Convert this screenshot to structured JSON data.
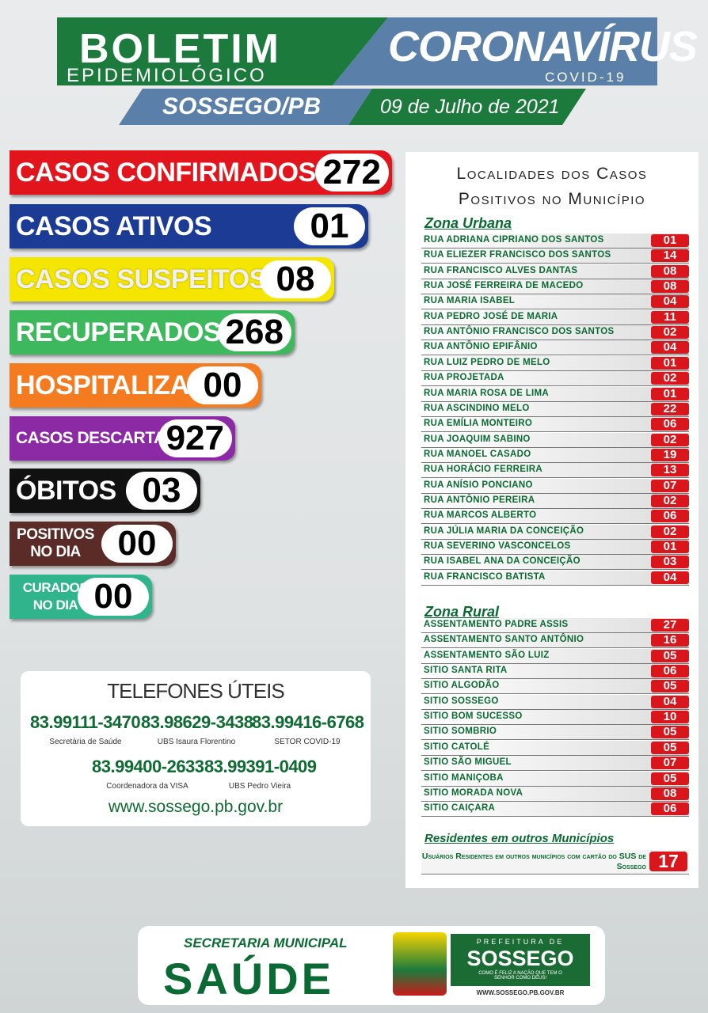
{
  "header": {
    "title": "BOLETIM",
    "subtitle": "EPIDEMIOLÓGICO",
    "virus": "CORONAVÍRUS",
    "covid": "COVID-19",
    "location": "SOSSEGO/PB",
    "date": "09 de Julho de 2021"
  },
  "stats": [
    {
      "label": "CASOS CONFIRMADOS",
      "value": "272",
      "color": "#e2151d"
    },
    {
      "label": "CASOS ATIVOS",
      "value": "01",
      "color": "#1c3b94"
    },
    {
      "label": "CASOS SUSPEITOS",
      "value": "08",
      "color": "#f4e600"
    },
    {
      "label": "RECUPERADOS",
      "value": "268",
      "color": "#3db85c"
    },
    {
      "label": "HOSPITALIZADOS",
      "value": "00",
      "color": "#f47b20"
    },
    {
      "label": "CASOS DESCARTADOS",
      "value": "927",
      "color": "#8c2aa6"
    },
    {
      "label": "ÓBITOS",
      "value": "03",
      "color": "#111111"
    },
    {
      "label": "POSITIVOS NO DIA",
      "value": "00",
      "color": "#5b2c27"
    },
    {
      "label": "CURADOS NO DIA",
      "value": "00",
      "color": "#2fb48c"
    }
  ],
  "phones": {
    "title": "TELEFONES ÚTEIS",
    "entries": [
      {
        "number": "83.99111-3470",
        "label": "Secretária de Saúde"
      },
      {
        "number": "83.98629-3438",
        "label": "UBS Isaura Florentino"
      },
      {
        "number": "83.99416-6768",
        "label": "SETOR COVID-19"
      },
      {
        "number": "83.99400-2633",
        "label": "Coordenadora da VISA"
      },
      {
        "number": "83.99391-0409",
        "label": "UBS Pedro Vieira"
      }
    ],
    "website": "www.sossego.pb.gov.br"
  },
  "localities": {
    "title": [
      "Localidades dos Casos",
      "Positivos no Município"
    ],
    "urban": {
      "heading": "Zona Urbana",
      "rows": [
        [
          "RUA ADRIANA CIPRIANO DOS SANTOS",
          "01"
        ],
        [
          "RUA ELIEZER FRANCISCO DOS SANTOS",
          "14"
        ],
        [
          "RUA FRANCISCO ALVES DANTAS",
          "08"
        ],
        [
          "RUA JOSÉ FERREIRA DE MACEDO",
          "08"
        ],
        [
          "RUA MARIA ISABEL",
          "04"
        ],
        [
          "RUA PEDRO JOSÉ DE MARIA",
          "11"
        ],
        [
          "RUA ANTÔNIO FRANCISCO DOS SANTOS",
          "02"
        ],
        [
          "RUA ANTÔNIO EPIFÂNIO",
          "04"
        ],
        [
          "RUA LUIZ PEDRO DE MELO",
          "01"
        ],
        [
          "RUA PROJETADA",
          "02"
        ],
        [
          "RUA MARIA ROSA DE LIMA",
          "01"
        ],
        [
          "RUA ASCINDINO MELO",
          "22"
        ],
        [
          "RUA EMÍLIA MONTEIRO",
          "06"
        ],
        [
          "RUA JOAQUIM SABINO",
          "02"
        ],
        [
          "RUA MANOEL CASADO",
          "19"
        ],
        [
          "RUA HORÁCIO FERREIRA",
          "13"
        ],
        [
          "RUA ANÍSIO PONCIANO",
          "07"
        ],
        [
          "RUA ANTÔNIO PEREIRA",
          "02"
        ],
        [
          "RUA MARCOS ALBERTO",
          "06"
        ],
        [
          "RUA JÚLIA MARIA DA CONCEIÇÃO",
          "02"
        ],
        [
          "RUA SEVERINO VASCONCELOS",
          "01"
        ],
        [
          "RUA ISABEL ANA DA CONCEIÇÃO",
          "03"
        ],
        [
          "RUA FRANCISCO BATISTA",
          "04"
        ]
      ]
    },
    "rural": {
      "heading": "Zona Rural",
      "rows": [
        [
          "ASSENTAMENTO PADRE ASSIS",
          "27"
        ],
        [
          "ASSENTAMENTO SANTO ANTÔNIO",
          "16"
        ],
        [
          "ASSENTAMENTO SÃO LUIZ",
          "05"
        ],
        [
          "SITIO SANTA RITA",
          "06"
        ],
        [
          "SITIO ALGODÃO",
          "05"
        ],
        [
          "SITIO SOSSEGO",
          "04"
        ],
        [
          "SITIO BOM SUCESSO",
          "10"
        ],
        [
          "SITIO SOMBRIO",
          "05"
        ],
        [
          "SITIO CATOLÉ",
          "05"
        ],
        [
          "SITIO SÃO MIGUEL",
          "07"
        ],
        [
          "SITIO MANIÇOBA",
          "05"
        ],
        [
          "SITIO MORADA NOVA",
          "08"
        ],
        [
          "SITIO CAIÇARA",
          "06"
        ]
      ]
    },
    "others": {
      "heading": "Residentes em outros Municípios",
      "text": "Usuários Residentes em outros municípios com cartão do SUS de Sossego",
      "value": "17"
    }
  },
  "footer": {
    "secretaria": "SECRETARIA MUNICIPAL",
    "saude": "SAÚDE",
    "prefeitura": "PREFEITURA DE",
    "city": "SOSSEGO",
    "motto": "COMO É FELIZ A NAÇÃO QUE TEM O SENHOR COMO DEUS!",
    "site": "WWW.SOSSEGO.PB.GOV.BR"
  }
}
